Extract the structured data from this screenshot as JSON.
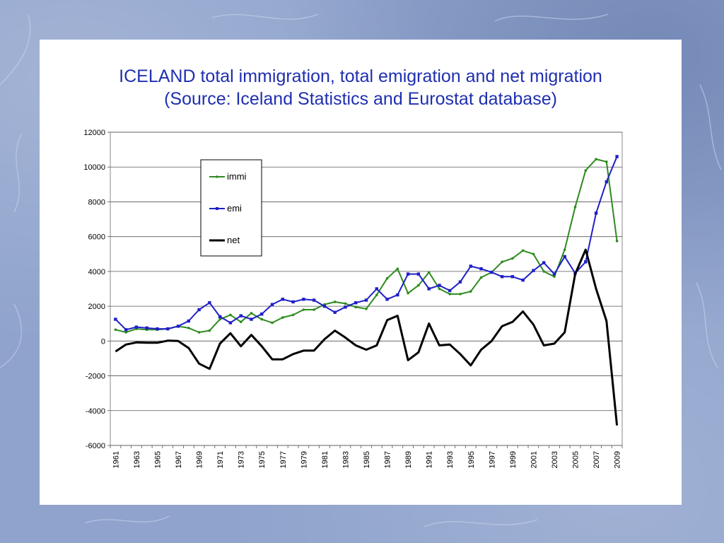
{
  "slide": {
    "title_line1": "ICELAND total immigration, total emigration and net migration",
    "title_line2": "(Source: Iceland Statistics and Eurostat database)"
  },
  "chart_data": {
    "type": "line",
    "ylim": [
      -6000,
      12000
    ],
    "yticks": [
      12000,
      10000,
      8000,
      6000,
      4000,
      2000,
      0,
      -2000,
      -4000,
      -6000
    ],
    "grid": "horizontal",
    "legend_position": "upper-left",
    "x": [
      1961,
      1962,
      1963,
      1964,
      1965,
      1966,
      1967,
      1968,
      1969,
      1970,
      1971,
      1972,
      1973,
      1974,
      1975,
      1976,
      1977,
      1978,
      1979,
      1980,
      1981,
      1982,
      1983,
      1984,
      1985,
      1986,
      1987,
      1988,
      1989,
      1990,
      1991,
      1992,
      1993,
      1994,
      1995,
      1996,
      1997,
      1998,
      1999,
      2000,
      2001,
      2002,
      2003,
      2004,
      2005,
      2006,
      2007,
      2008,
      2009
    ],
    "xtick_labels": [
      "1961",
      "1963",
      "1965",
      "1967",
      "1969",
      "1971",
      "1973",
      "1975",
      "1977",
      "1979",
      "1981",
      "1983",
      "1985",
      "1987",
      "1989",
      "1991",
      "1993",
      "1995",
      "1997",
      "1999",
      "2001",
      "2003",
      "2005",
      "2007",
      "2009"
    ],
    "series": [
      {
        "name": "immi",
        "color": "#2e8b1f",
        "marker": "dot",
        "values": [
          650,
          500,
          700,
          650,
          650,
          700,
          850,
          750,
          500,
          600,
          1250,
          1500,
          1100,
          1600,
          1250,
          1050,
          1350,
          1500,
          1800,
          1800,
          2100,
          2250,
          2150,
          1950,
          1850,
          2650,
          3600,
          4150,
          2750,
          3200,
          3950,
          3000,
          2700,
          2700,
          2850,
          3650,
          3950,
          4550,
          4750,
          5200,
          5000,
          4000,
          3700,
          5250,
          7700,
          9800,
          10450,
          10300,
          5750
        ]
      },
      {
        "name": "emi",
        "color": "#1f1fc8",
        "marker": "square",
        "values": [
          1250,
          650,
          800,
          750,
          700,
          700,
          850,
          1150,
          1800,
          2200,
          1400,
          1050,
          1450,
          1250,
          1550,
          2100,
          2400,
          2250,
          2400,
          2350,
          2000,
          1650,
          1950,
          2200,
          2350,
          3000,
          2400,
          2650,
          3850,
          3850,
          3000,
          3200,
          2900,
          3400,
          4300,
          4150,
          3950,
          3700,
          3700,
          3500,
          4050,
          4500,
          3850,
          4850,
          3900,
          4550,
          7350,
          9150,
          10600
        ]
      },
      {
        "name": "net",
        "color": "#000000",
        "marker": "none",
        "values": [
          -600,
          -200,
          -80,
          -100,
          -100,
          20,
          0,
          -400,
          -1300,
          -1600,
          -150,
          450,
          -300,
          350,
          -300,
          -1050,
          -1050,
          -750,
          -550,
          -550,
          100,
          600,
          200,
          -250,
          -500,
          -250,
          1200,
          1450,
          -1100,
          -650,
          1000,
          -250,
          -200,
          -750,
          -1400,
          -500,
          0,
          850,
          1100,
          1700,
          950,
          -250,
          -150,
          500,
          3850,
          5250,
          3000,
          1150,
          -4850
        ]
      }
    ]
  }
}
